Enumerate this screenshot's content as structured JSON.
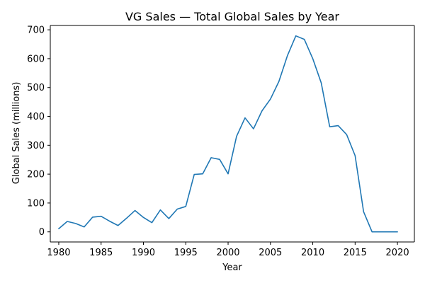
{
  "chart_data": {
    "type": "line",
    "title": "VG Sales — Total Global Sales by Year",
    "xlabel": "Year",
    "ylabel": "Global Sales (millions)",
    "xlim": [
      1979,
      2022
    ],
    "ylim": [
      -35,
      715
    ],
    "xticks": [
      1980,
      1985,
      1990,
      1995,
      2000,
      2005,
      2010,
      2015,
      2020
    ],
    "yticks": [
      0,
      100,
      200,
      300,
      400,
      500,
      600,
      700
    ],
    "grid": false,
    "line_color": "#1f77b4",
    "series": [
      {
        "x": [
          1980,
          1981,
          1982,
          1983,
          1984,
          1985,
          1986,
          1987,
          1988,
          1989,
          1990,
          1991,
          1992,
          1993,
          1994,
          1995,
          1996,
          1997,
          1998,
          1999,
          2000,
          2001,
          2002,
          2003,
          2004,
          2005,
          2006,
          2007,
          2008,
          2009,
          2010,
          2011,
          2012,
          2013,
          2014,
          2015,
          2016,
          2017,
          2018,
          2019,
          2020
        ],
        "values": [
          11,
          36,
          29,
          17,
          51,
          54,
          37,
          22,
          47,
          74,
          50,
          32,
          76,
          46,
          79,
          88,
          199,
          201,
          257,
          251,
          201,
          331,
          395,
          357,
          419,
          460,
          521,
          610,
          679,
          667,
          600,
          516,
          364,
          368,
          337,
          264,
          70,
          0,
          0,
          0,
          0
        ]
      }
    ]
  }
}
